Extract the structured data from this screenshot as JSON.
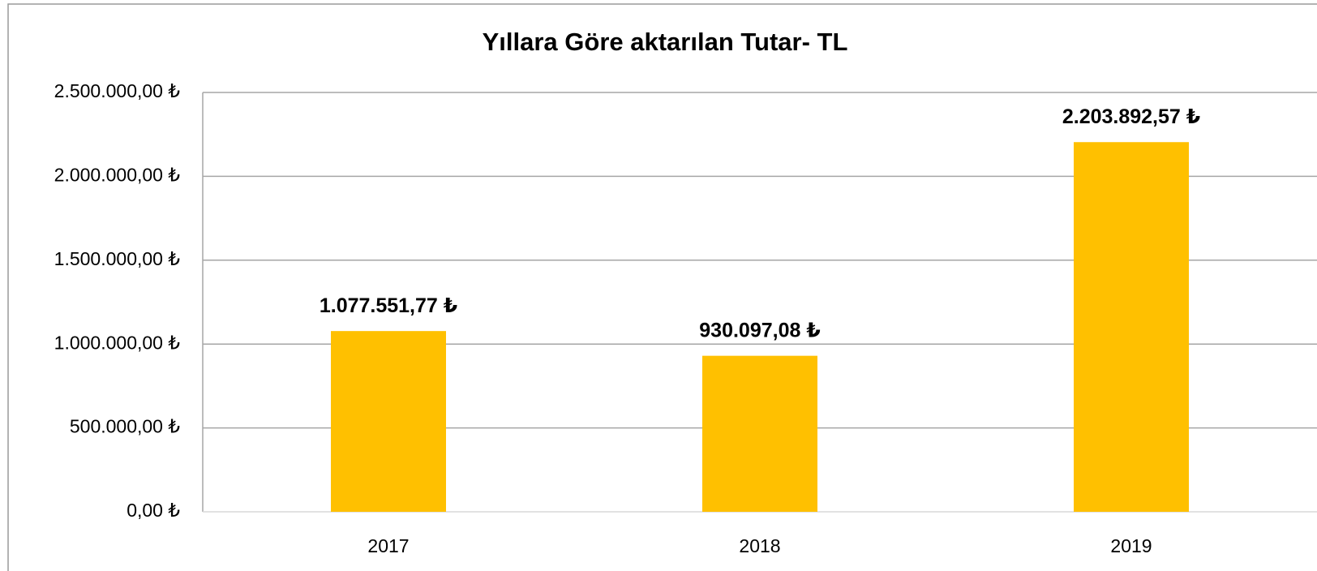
{
  "chart_data": {
    "type": "bar",
    "title": "Yıllara Göre aktarılan Tutar- TL",
    "categories": [
      "2017",
      "2018",
      "2019"
    ],
    "values": [
      1077551.77,
      930097.08,
      2203892.57
    ],
    "value_labels": [
      "1.077.551,77 ₺",
      "930.097,08 ₺",
      "2.203.892,57 ₺"
    ],
    "color": "#ffc000",
    "ylim": [
      0,
      2500000
    ],
    "yticks": [
      {
        "value": 0,
        "label": "0,00 ₺"
      },
      {
        "value": 500000,
        "label": "500.000,00 ₺"
      },
      {
        "value": 1000000,
        "label": "1.000.000,00 ₺"
      },
      {
        "value": 1500000,
        "label": "1.500.000,00 ₺"
      },
      {
        "value": 2000000,
        "label": "2.000.000,00 ₺"
      },
      {
        "value": 2500000,
        "label": "2.500.000,00 ₺"
      }
    ],
    "grid": true
  }
}
